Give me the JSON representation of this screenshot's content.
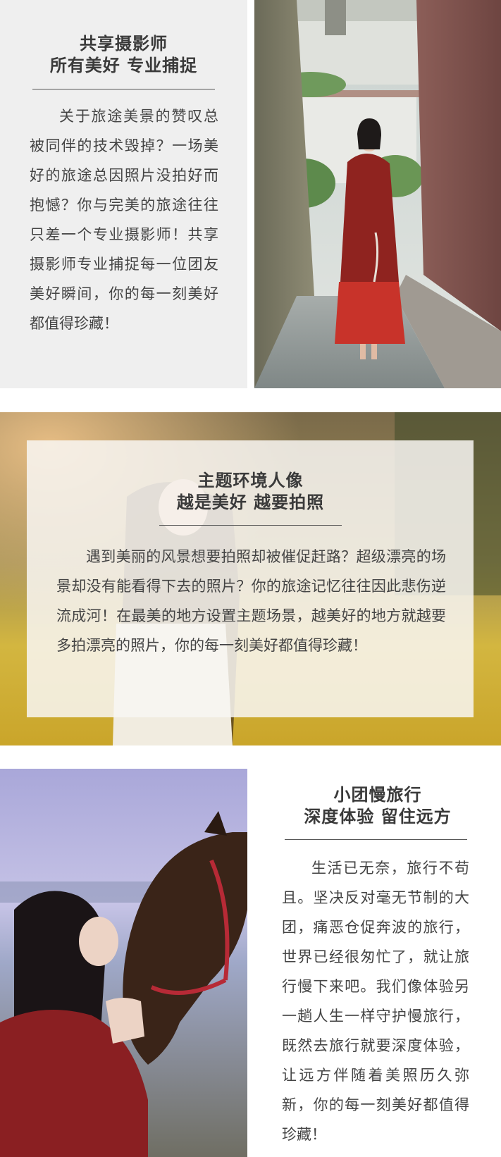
{
  "sections": [
    {
      "title_line1": "共享摄影师",
      "title_line2": "所有美好  专业捕捉",
      "body": "关于旅途美景的赞叹总被同伴的技术毁掉？一场美好的旅途总因照片没拍好而抱憾？你与完美的旅途往往只差一个专业摄影师！共享摄影师专业捕捉每一位团友美好瞬间，你的每一刻美好都值得珍藏！"
    },
    {
      "title_line1": "主题环境人像",
      "title_line2": "越是美好  越要拍照",
      "body": "遇到美丽的风景想要拍照却被催促赶路？超级漂亮的场景却没有能看得下去的照片？你的旅途记忆往往因此悲伤逆流成河！在最美的地方设置主题场景，越美好的地方就越要多拍漂亮的照片，你的每一刻美好都值得珍藏！"
    },
    {
      "title_line1": "小团慢旅行",
      "title_line2": "深度体验  留住远方",
      "body": "生活已无奈，旅行不苟且。坚决反对毫无节制的大团，痛恶仓促奔波的旅行，世界已经很匆忙了，就让旅行慢下来吧。我们像体验另一趟人生一样守护慢旅行，既然去旅行就要深度体验，让远方伴随着美照历久弥新，你的每一刻美好都值得珍藏！"
    }
  ],
  "colors": {
    "panel_bg": "#efefef",
    "text": "#444444",
    "heading": "#3a3a3a",
    "rule": "#555555"
  }
}
